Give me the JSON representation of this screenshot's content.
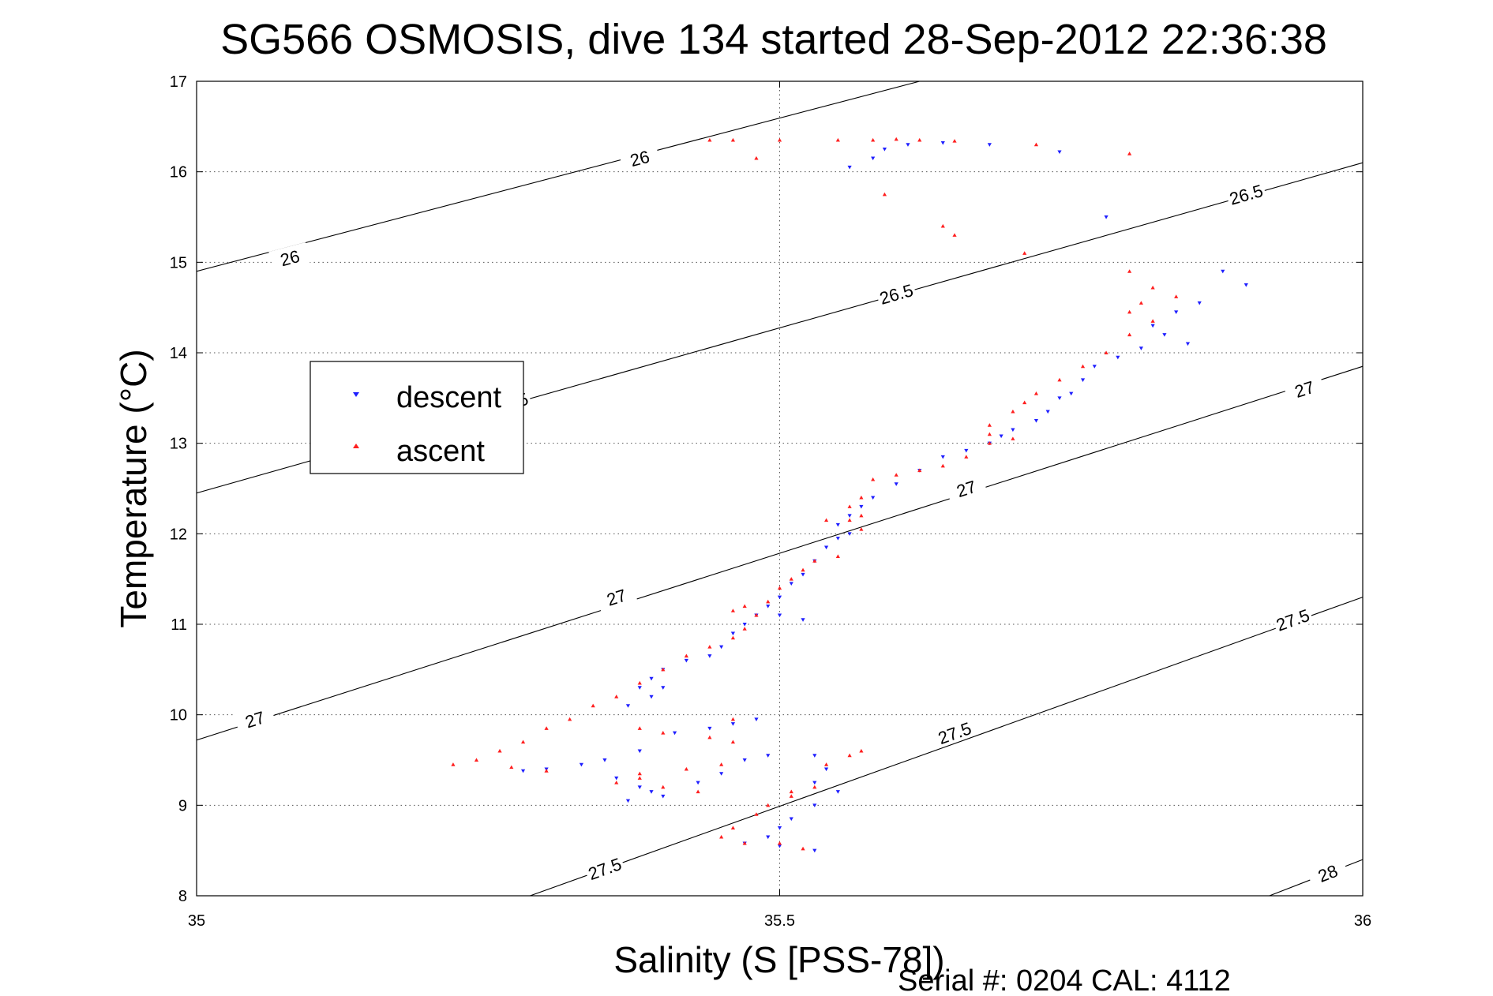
{
  "chart_data": {
    "type": "scatter",
    "title": "SG566 OSMOSIS, dive 134 started 28-Sep-2012 22:36:38",
    "xlabel": "Salinity (S [PSS-78])",
    "ylabel": "Temperature (°C)",
    "xlim": [
      35,
      36
    ],
    "ylim": [
      8,
      17
    ],
    "xticks": [
      "35",
      "35.5",
      "36"
    ],
    "yticks": [
      "8",
      "9",
      "10",
      "11",
      "12",
      "13",
      "14",
      "15",
      "16",
      "17"
    ],
    "grid": "dotted",
    "legend_position": "upper-left",
    "footer": "Serial #: 0204  CAL: 4112",
    "colors": {
      "descent": "#1f1fff",
      "ascent": "#ff1f1f",
      "contour": "#000000"
    },
    "series": [
      {
        "name": "descent",
        "marker": "triangle-down",
        "points": [
          [
            35.56,
            16.05
          ],
          [
            35.58,
            16.15
          ],
          [
            35.59,
            16.25
          ],
          [
            35.61,
            16.3
          ],
          [
            35.64,
            16.32
          ],
          [
            35.68,
            16.3
          ],
          [
            35.74,
            16.22
          ],
          [
            35.78,
            15.5
          ],
          [
            35.85,
            14.1
          ],
          [
            35.83,
            14.2
          ],
          [
            35.81,
            14.05
          ],
          [
            35.79,
            13.95
          ],
          [
            35.77,
            13.85
          ],
          [
            35.76,
            13.7
          ],
          [
            35.75,
            13.55
          ],
          [
            35.74,
            13.5
          ],
          [
            35.73,
            13.35
          ],
          [
            35.72,
            13.25
          ],
          [
            35.7,
            13.15
          ],
          [
            35.69,
            13.08
          ],
          [
            35.68,
            13.0
          ],
          [
            35.66,
            12.92
          ],
          [
            35.64,
            12.85
          ],
          [
            35.62,
            12.7
          ],
          [
            35.6,
            12.55
          ],
          [
            35.58,
            12.4
          ],
          [
            35.57,
            12.3
          ],
          [
            35.56,
            12.2
          ],
          [
            35.55,
            12.1
          ],
          [
            35.56,
            12.0
          ],
          [
            35.55,
            11.95
          ],
          [
            35.54,
            11.85
          ],
          [
            35.53,
            11.7
          ],
          [
            35.52,
            11.55
          ],
          [
            35.51,
            11.45
          ],
          [
            35.5,
            11.3
          ],
          [
            35.49,
            11.2
          ],
          [
            35.48,
            11.1
          ],
          [
            35.47,
            11.0
          ],
          [
            35.46,
            10.9
          ],
          [
            35.45,
            10.75
          ],
          [
            35.44,
            10.65
          ],
          [
            35.42,
            10.6
          ],
          [
            35.4,
            10.5
          ],
          [
            35.39,
            10.4
          ],
          [
            35.38,
            10.3
          ],
          [
            35.37,
            10.1
          ],
          [
            35.39,
            10.2
          ],
          [
            35.4,
            10.3
          ],
          [
            35.44,
            9.85
          ],
          [
            35.46,
            9.9
          ],
          [
            35.48,
            9.95
          ],
          [
            35.41,
            9.8
          ],
          [
            35.38,
            9.6
          ],
          [
            35.35,
            9.5
          ],
          [
            35.33,
            9.45
          ],
          [
            35.3,
            9.4
          ],
          [
            35.28,
            9.38
          ],
          [
            35.36,
            9.3
          ],
          [
            35.38,
            9.2
          ],
          [
            35.4,
            9.1
          ],
          [
            35.37,
            9.05
          ],
          [
            35.39,
            9.15
          ],
          [
            35.43,
            9.25
          ],
          [
            35.45,
            9.35
          ],
          [
            35.47,
            9.5
          ],
          [
            35.49,
            9.55
          ],
          [
            35.53,
            9.55
          ],
          [
            35.54,
            9.4
          ],
          [
            35.53,
            9.25
          ],
          [
            35.55,
            9.15
          ],
          [
            35.53,
            9.0
          ],
          [
            35.51,
            8.85
          ],
          [
            35.5,
            8.75
          ],
          [
            35.49,
            8.65
          ],
          [
            35.47,
            8.58
          ],
          [
            35.5,
            8.55
          ],
          [
            35.53,
            8.5
          ],
          [
            35.88,
            14.9
          ],
          [
            35.9,
            14.75
          ],
          [
            35.86,
            14.55
          ],
          [
            35.84,
            14.45
          ],
          [
            35.82,
            14.3
          ],
          [
            35.52,
            11.05
          ],
          [
            35.5,
            11.1
          ]
        ]
      },
      {
        "name": "ascent",
        "marker": "triangle-up",
        "points": [
          [
            35.44,
            16.35
          ],
          [
            35.46,
            16.35
          ],
          [
            35.5,
            16.35
          ],
          [
            35.55,
            16.35
          ],
          [
            35.58,
            16.35
          ],
          [
            35.6,
            16.36
          ],
          [
            35.62,
            16.35
          ],
          [
            35.65,
            16.34
          ],
          [
            35.72,
            16.3
          ],
          [
            35.8,
            16.2
          ],
          [
            35.48,
            16.15
          ],
          [
            35.59,
            15.75
          ],
          [
            35.64,
            15.4
          ],
          [
            35.65,
            15.3
          ],
          [
            35.71,
            15.1
          ],
          [
            35.8,
            14.9
          ],
          [
            35.82,
            14.72
          ],
          [
            35.84,
            14.62
          ],
          [
            35.81,
            14.55
          ],
          [
            35.8,
            14.45
          ],
          [
            35.82,
            14.35
          ],
          [
            35.8,
            14.2
          ],
          [
            35.78,
            14.0
          ],
          [
            35.76,
            13.85
          ],
          [
            35.74,
            13.7
          ],
          [
            35.72,
            13.55
          ],
          [
            35.71,
            13.45
          ],
          [
            35.7,
            13.35
          ],
          [
            35.68,
            13.2
          ],
          [
            35.68,
            13.1
          ],
          [
            35.7,
            13.05
          ],
          [
            35.68,
            13.0
          ],
          [
            35.66,
            12.85
          ],
          [
            35.64,
            12.75
          ],
          [
            35.62,
            12.7
          ],
          [
            35.6,
            12.65
          ],
          [
            35.58,
            12.6
          ],
          [
            35.57,
            12.4
          ],
          [
            35.56,
            12.3
          ],
          [
            35.57,
            12.2
          ],
          [
            35.56,
            12.15
          ],
          [
            35.54,
            12.15
          ],
          [
            35.57,
            12.05
          ],
          [
            35.55,
            11.75
          ],
          [
            35.53,
            11.7
          ],
          [
            35.52,
            11.6
          ],
          [
            35.51,
            11.5
          ],
          [
            35.5,
            11.4
          ],
          [
            35.49,
            11.25
          ],
          [
            35.47,
            11.2
          ],
          [
            35.46,
            11.15
          ],
          [
            35.48,
            11.1
          ],
          [
            35.47,
            10.95
          ],
          [
            35.46,
            10.85
          ],
          [
            35.44,
            10.75
          ],
          [
            35.42,
            10.65
          ],
          [
            35.4,
            10.5
          ],
          [
            35.38,
            10.35
          ],
          [
            35.36,
            10.2
          ],
          [
            35.34,
            10.1
          ],
          [
            35.32,
            9.95
          ],
          [
            35.3,
            9.85
          ],
          [
            35.28,
            9.7
          ],
          [
            35.26,
            9.6
          ],
          [
            35.24,
            9.5
          ],
          [
            35.22,
            9.45
          ],
          [
            35.27,
            9.42
          ],
          [
            35.3,
            9.38
          ],
          [
            35.38,
            9.35
          ],
          [
            35.42,
            9.4
          ],
          [
            35.45,
            9.45
          ],
          [
            35.46,
            9.7
          ],
          [
            35.44,
            9.75
          ],
          [
            35.4,
            9.8
          ],
          [
            35.38,
            9.85
          ],
          [
            35.46,
            9.95
          ],
          [
            35.38,
            9.3
          ],
          [
            35.36,
            9.25
          ],
          [
            35.4,
            9.2
          ],
          [
            35.43,
            9.15
          ],
          [
            35.51,
            9.15
          ],
          [
            35.53,
            9.2
          ],
          [
            35.54,
            9.45
          ],
          [
            35.56,
            9.55
          ],
          [
            35.57,
            9.6
          ],
          [
            35.51,
            9.1
          ],
          [
            35.49,
            9.0
          ],
          [
            35.48,
            8.9
          ],
          [
            35.46,
            8.75
          ],
          [
            35.45,
            8.65
          ],
          [
            35.47,
            8.58
          ],
          [
            35.5,
            8.58
          ],
          [
            35.52,
            8.52
          ]
        ]
      }
    ],
    "contours": [
      {
        "label": "26",
        "label_positions": [
          [
            35.08,
            15.05
          ],
          [
            35.38,
            16.15
          ]
        ]
      },
      {
        "label": "26.5",
        "label_positions": [
          [
            35.27,
            13.45
          ],
          [
            35.6,
            14.65
          ],
          [
            35.9,
            15.75
          ]
        ]
      },
      {
        "label": "27",
        "label_positions": [
          [
            35.05,
            9.95
          ],
          [
            35.36,
            11.3
          ],
          [
            35.66,
            12.5
          ],
          [
            35.95,
            13.6
          ]
        ]
      },
      {
        "label": "27.5",
        "label_positions": [
          [
            35.35,
            8.3
          ],
          [
            35.65,
            9.8
          ],
          [
            35.94,
            11.05
          ]
        ]
      },
      {
        "label": "28",
        "label_positions": [
          [
            35.97,
            8.25
          ]
        ]
      }
    ],
    "contour_lines": [
      {
        "sigma": "26",
        "from": [
          35.0,
          14.9
        ],
        "to": [
          35.62,
          17.0
        ]
      },
      {
        "sigma": "26.5",
        "from": [
          35.0,
          12.45
        ],
        "to": [
          36.0,
          16.1
        ]
      },
      {
        "sigma": "27",
        "from": [
          35.0,
          9.72
        ],
        "to": [
          36.0,
          13.85
        ]
      },
      {
        "sigma": "27.5",
        "from": [
          35.286,
          8.0
        ],
        "to": [
          36.0,
          11.3
        ]
      },
      {
        "sigma": "28",
        "from": [
          35.92,
          8.0
        ],
        "to": [
          36.0,
          8.4
        ]
      }
    ]
  }
}
